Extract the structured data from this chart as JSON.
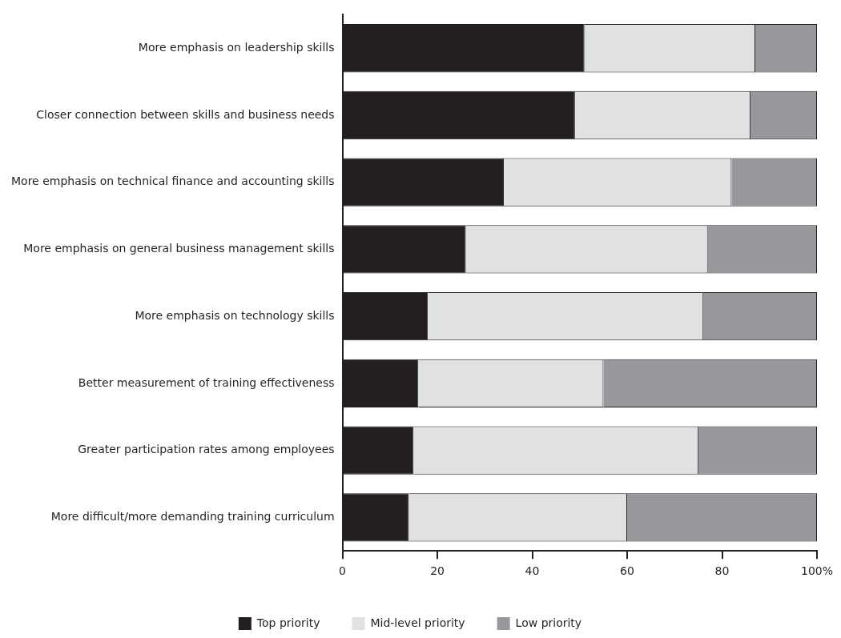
{
  "chart_data": {
    "type": "bar",
    "orientation": "horizontal",
    "stacked": true,
    "categories": [
      "More emphasis on leadership skills",
      "Closer connection between skills and business needs",
      "More emphasis on technical finance and accounting skills",
      "More emphasis on general business management skills",
      "More emphasis on technology skills",
      "Better measurement of training effectiveness",
      "Greater participation rates among employees",
      "More difficult/more demanding training curriculum"
    ],
    "series": [
      {
        "name": "Top priority",
        "color": "#231f20",
        "values": [
          51,
          49,
          34,
          26,
          18,
          16,
          15,
          14
        ]
      },
      {
        "name": "Mid-level priority",
        "color": "#e0e1e3",
        "values": [
          36,
          37,
          48,
          51,
          58,
          39,
          60,
          46
        ]
      },
      {
        "name": "Low priority",
        "color": "#97989b",
        "values": [
          13,
          14,
          18,
          23,
          24,
          45,
          25,
          40
        ]
      }
    ],
    "xlim": [
      0,
      100
    ],
    "xticks": [
      0,
      20,
      40,
      60,
      80,
      {
        "value": 100,
        "label": "100%"
      }
    ],
    "legend": "bottom"
  }
}
